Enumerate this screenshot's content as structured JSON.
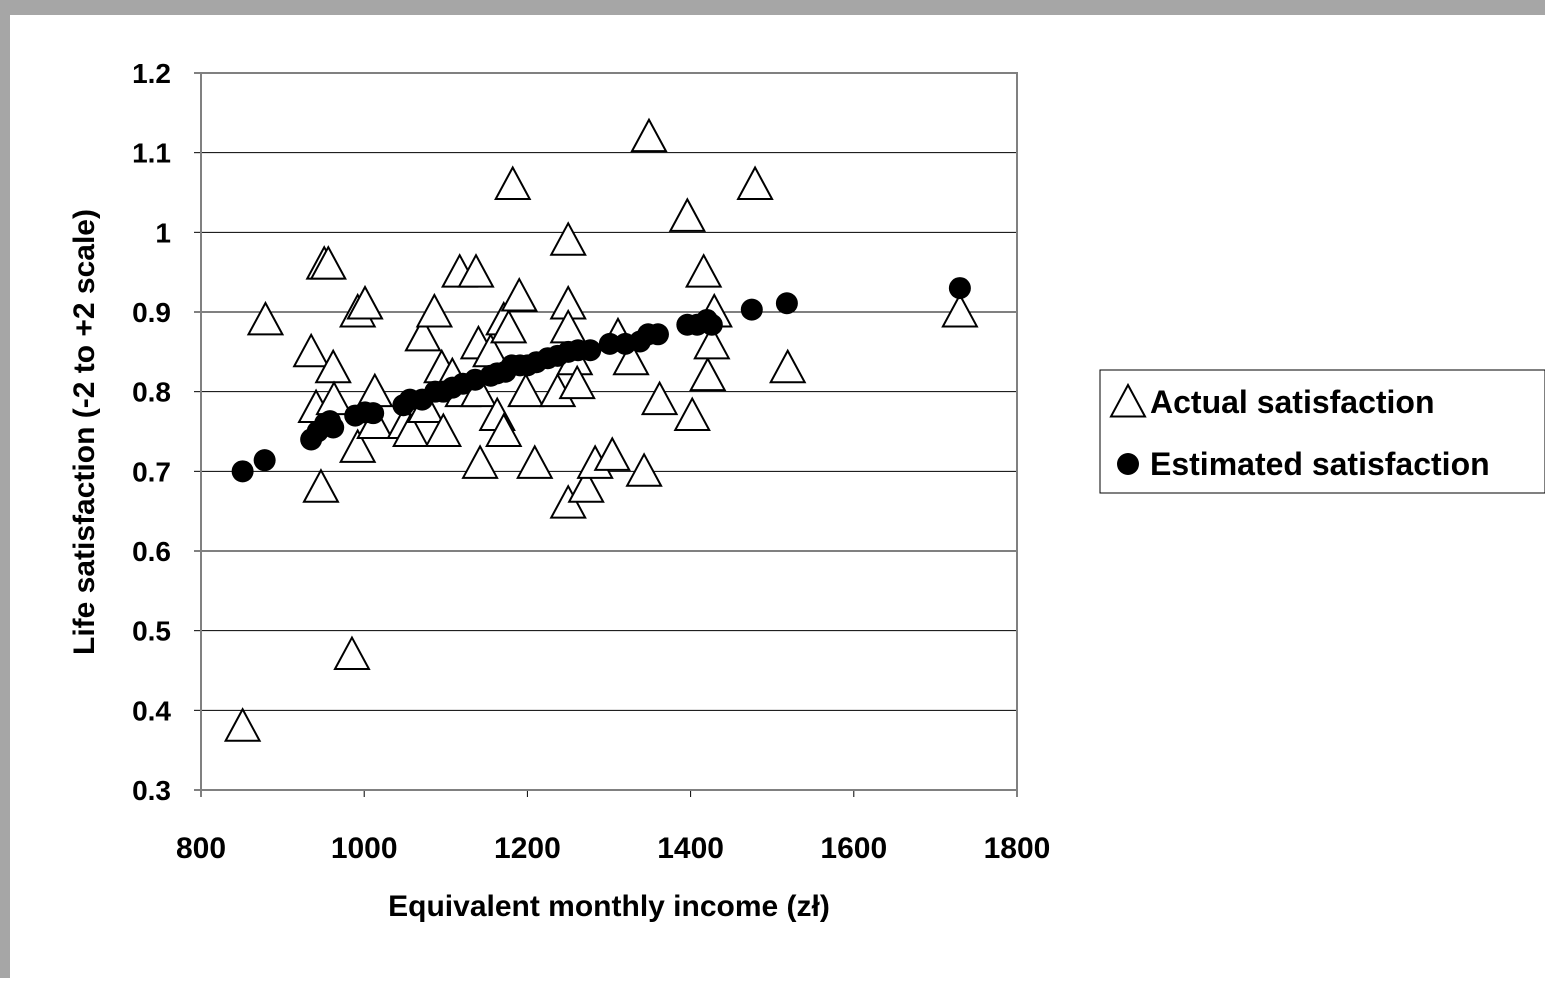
{
  "chart_data": {
    "type": "scatter",
    "xlabel": "Equivalent monthly income (zł)",
    "ylabel": "Life satisfaction (-2 to +2 scale)",
    "xlim": [
      800,
      1800
    ],
    "xticks": [
      800,
      1000,
      1200,
      1400,
      1600,
      1800
    ],
    "ylim": [
      0.3,
      1.2
    ],
    "yticks": [
      0.3,
      0.4,
      0.5,
      0.6,
      0.7,
      0.8,
      0.9,
      1,
      1.1,
      1.2
    ],
    "grid": true,
    "legend": "right",
    "series": [
      {
        "name": "Actual satisfaction",
        "marker": "triangle",
        "color": "#ffffff",
        "x": [
          851,
          879,
          935,
          941,
          947,
          951,
          956,
          962,
          963,
          985,
          992,
          992,
          1001,
          1013,
          1013,
          1050,
          1057,
          1072,
          1075,
          1086,
          1095,
          1097,
          1108,
          1117,
          1121,
          1137,
          1140,
          1140,
          1142,
          1155,
          1163,
          1171,
          1171,
          1177,
          1182,
          1190,
          1198,
          1209,
          1237,
          1250,
          1250,
          1250,
          1250,
          1258,
          1261,
          1272,
          1283,
          1304,
          1311,
          1327,
          1343,
          1349,
          1362,
          1396,
          1402,
          1416,
          1421,
          1426,
          1429,
          1479,
          1519,
          1730
        ],
        "values": [
          0.38,
          0.89,
          0.85,
          0.78,
          0.68,
          0.96,
          0.96,
          0.83,
          0.79,
          0.47,
          0.9,
          0.73,
          0.91,
          0.8,
          0.76,
          0.76,
          0.75,
          0.87,
          0.78,
          0.9,
          0.83,
          0.75,
          0.82,
          0.95,
          0.8,
          0.95,
          0.8,
          0.86,
          0.71,
          0.85,
          0.77,
          0.75,
          0.89,
          0.88,
          1.06,
          0.92,
          0.8,
          0.71,
          0.8,
          0.91,
          0.99,
          0.88,
          0.66,
          0.84,
          0.81,
          0.68,
          0.71,
          0.72,
          0.87,
          0.84,
          0.7,
          1.12,
          0.79,
          1.02,
          0.77,
          0.95,
          0.82,
          0.86,
          0.9,
          1.06,
          0.83,
          0.9
        ]
      },
      {
        "name": "Estimated satisfaction",
        "marker": "circle",
        "color": "#000000",
        "x": [
          851,
          878,
          935,
          943,
          952,
          958,
          962,
          989,
          1001,
          1011,
          1048,
          1056,
          1071,
          1087,
          1097,
          1108,
          1121,
          1136,
          1155,
          1163,
          1173,
          1181,
          1191,
          1200,
          1211,
          1225,
          1237,
          1250,
          1262,
          1277,
          1301,
          1320,
          1338,
          1348,
          1360,
          1396,
          1408,
          1420,
          1426,
          1475,
          1518,
          1730
        ],
        "values": [
          0.7,
          0.714,
          0.74,
          0.75,
          0.76,
          0.763,
          0.755,
          0.77,
          0.774,
          0.773,
          0.783,
          0.79,
          0.79,
          0.8,
          0.8,
          0.805,
          0.81,
          0.815,
          0.82,
          0.823,
          0.825,
          0.833,
          0.833,
          0.833,
          0.837,
          0.842,
          0.845,
          0.85,
          0.852,
          0.852,
          0.86,
          0.86,
          0.863,
          0.872,
          0.872,
          0.884,
          0.884,
          0.89,
          0.884,
          0.903,
          0.911,
          0.93
        ]
      }
    ]
  }
}
